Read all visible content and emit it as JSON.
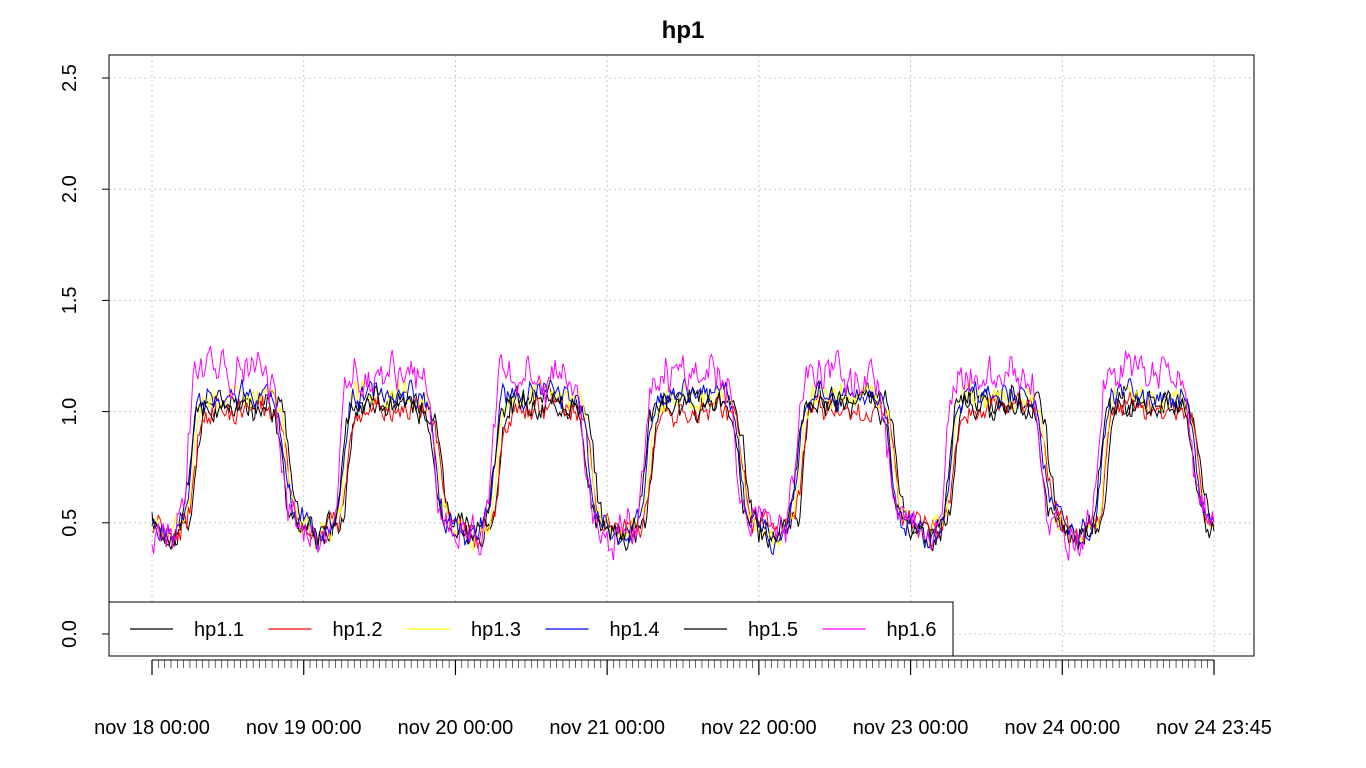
{
  "chart_data": {
    "type": "line",
    "title": "hp1",
    "xlabel": "",
    "ylabel": "",
    "ylim": [
      0,
      2.5
    ],
    "y_ticks": [
      "0.0",
      "0.5",
      "1.0",
      "1.5",
      "2.0",
      "2.5"
    ],
    "x_tick_labels": [
      "nov 18 00:00",
      "nov 19 00:00",
      "nov 20 00:00",
      "nov 21 00:00",
      "nov 22 00:00",
      "nov 23 00:00",
      "nov 24 00:00",
      "nov 24 23:45"
    ],
    "x_range_days": [
      0,
      7
    ],
    "sampling": "15 min",
    "grid": true,
    "legend_position": "bottom-left",
    "series": [
      {
        "name": "hp1.1",
        "color": "#000000"
      },
      {
        "name": "hp1.2",
        "color": "#ff0000"
      },
      {
        "name": "hp1.3",
        "color": "#ffff00"
      },
      {
        "name": "hp1.4",
        "color": "#0000ff"
      },
      {
        "name": "hp1.5",
        "color": "#000000"
      },
      {
        "name": "hp1.6",
        "color": "#ff00ff"
      }
    ],
    "daily_profile_note": "each day: ~0.5 at night, rising to ~1.0-1.2 during day",
    "night_level": 0.5,
    "day_level": 1.05,
    "day_peak_max": 1.4
  }
}
